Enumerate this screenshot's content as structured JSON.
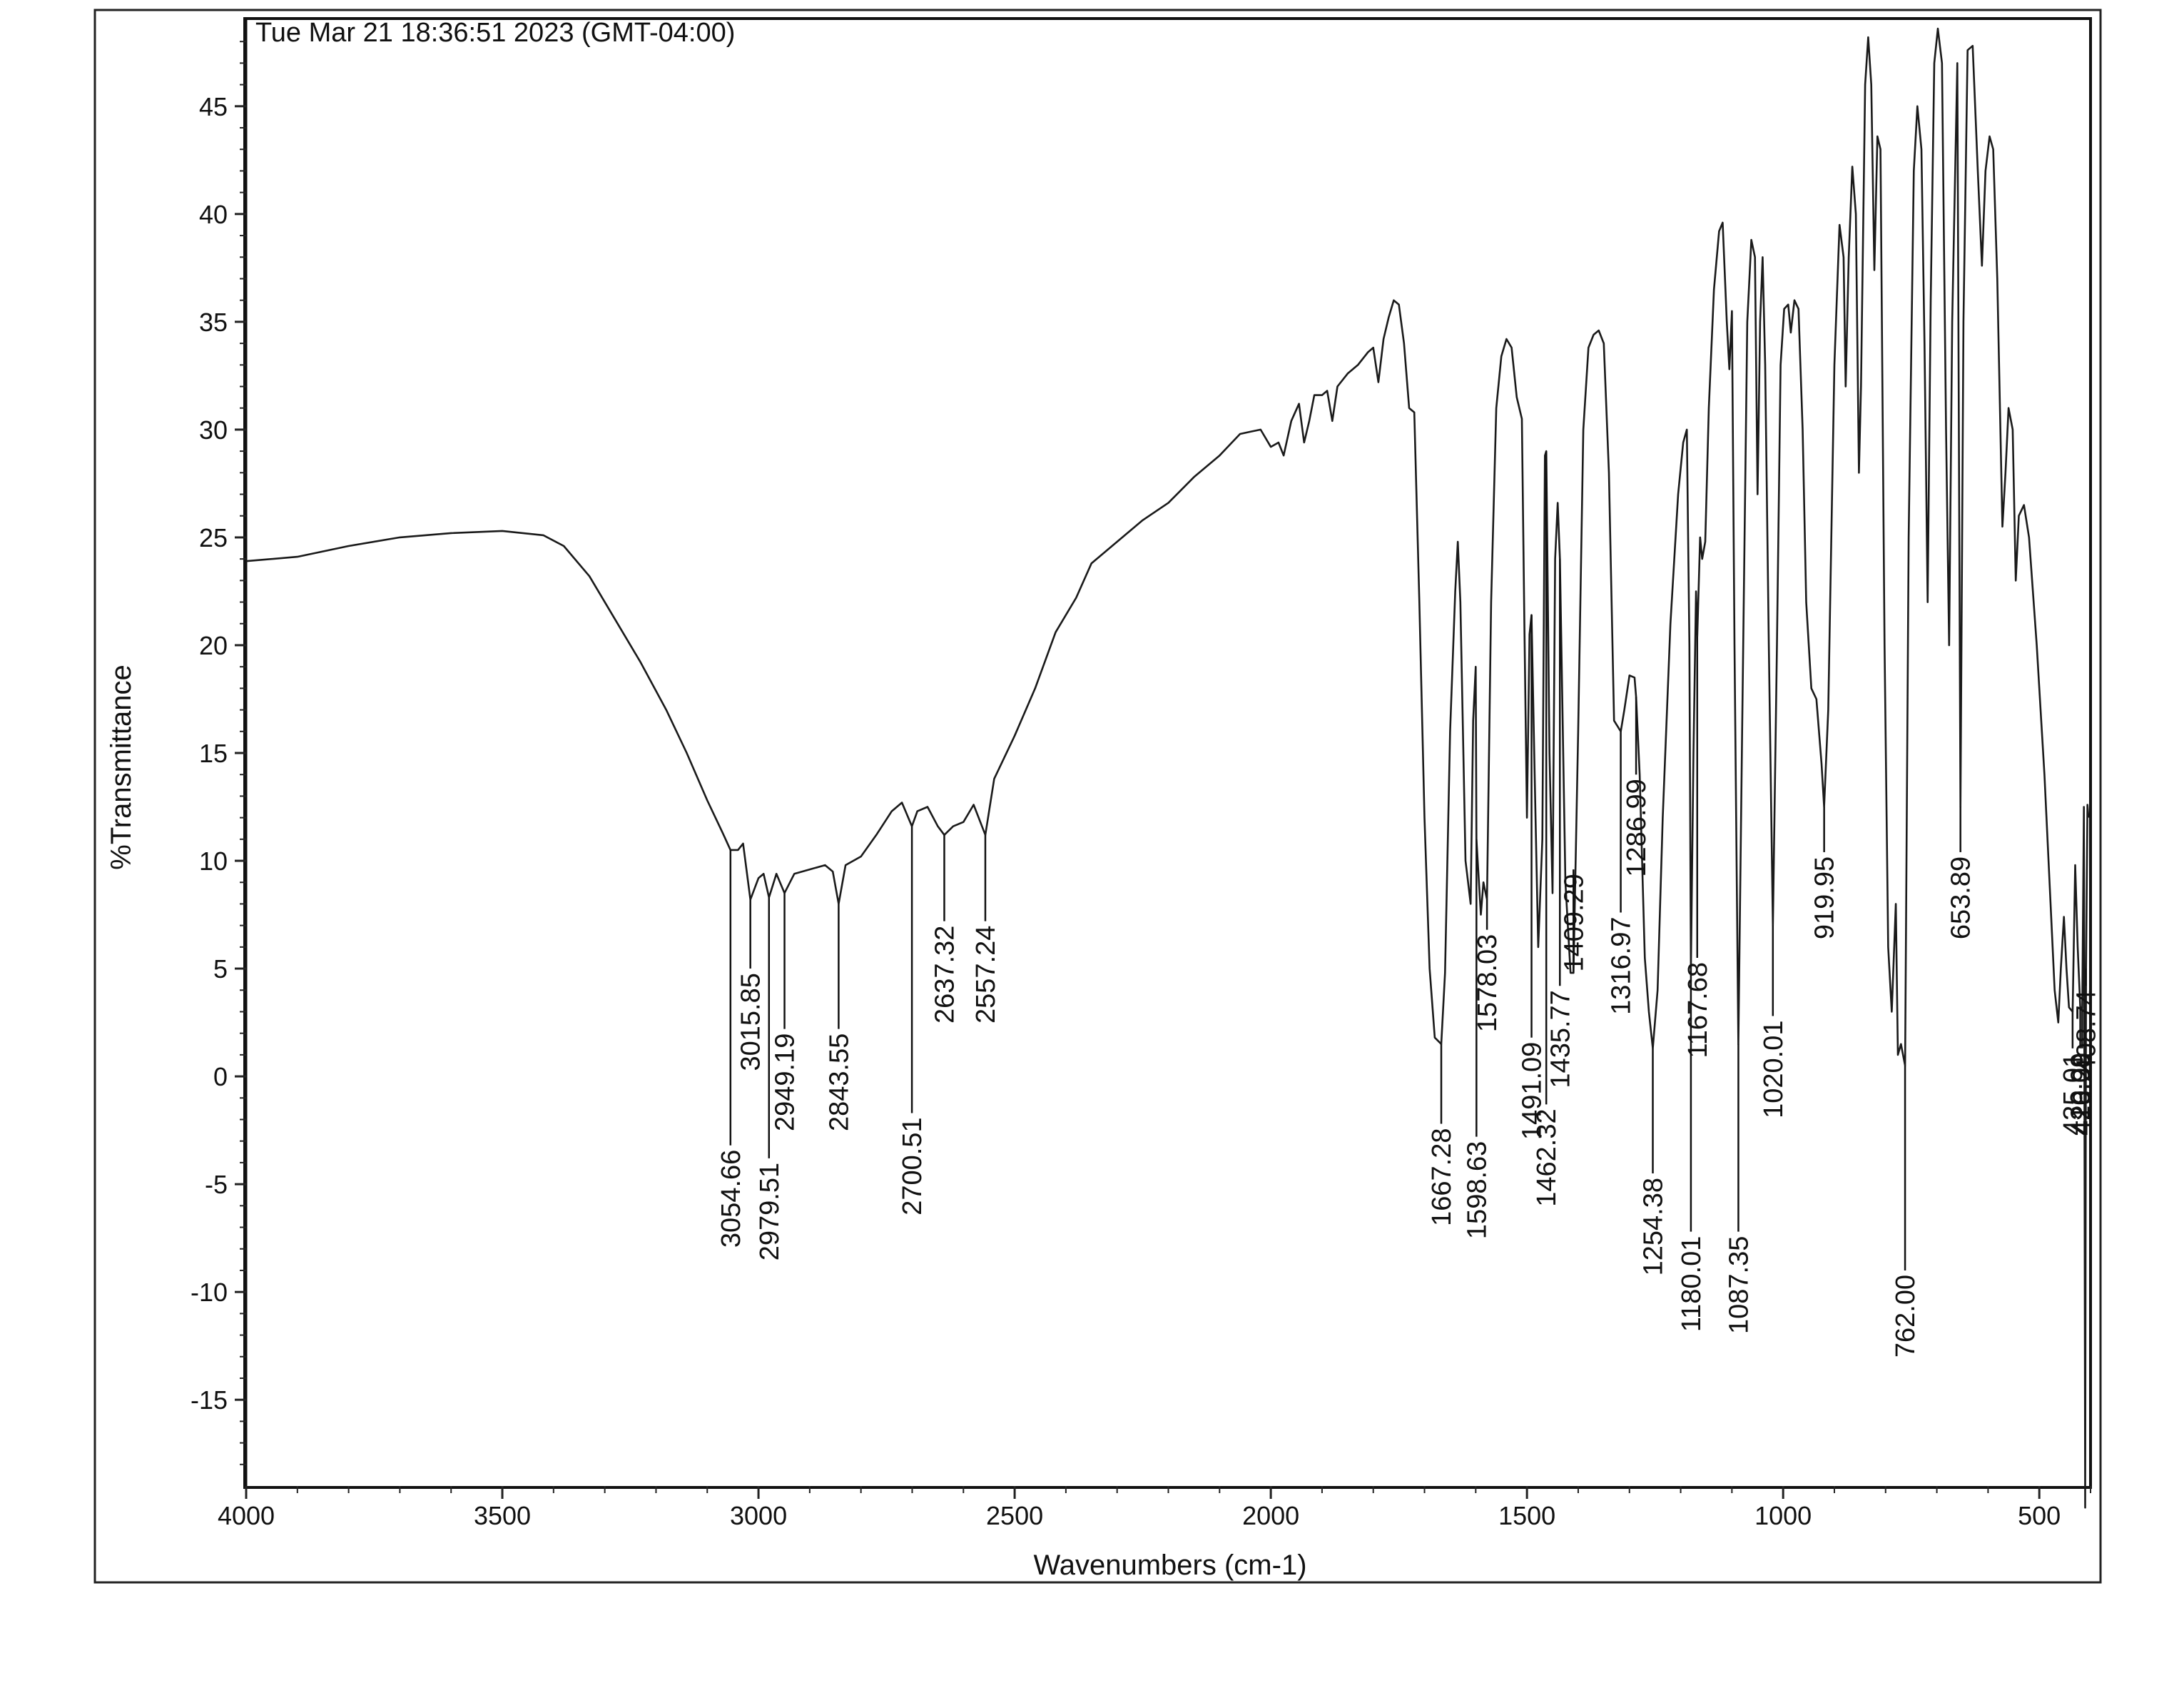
{
  "chart_data": {
    "type": "line",
    "timestamp": "Tue Mar 21 18:36:51 2023 (GMT-04:00)",
    "xlabel": "Wavenumbers (cm-1)",
    "ylabel": "%Transmittance",
    "xlim": [
      4000,
      400
    ],
    "ylim": [
      -19,
      49
    ],
    "grid": false,
    "x_ticks": [
      4000,
      3500,
      3000,
      2500,
      2000,
      1500,
      1000,
      500
    ],
    "y_ticks": [
      -15,
      -10,
      -5,
      0,
      5,
      10,
      15,
      20,
      25,
      30,
      35,
      40,
      45
    ],
    "series": [
      {
        "color": "#1a1a1a",
        "points": [
          [
            4000,
            23.9
          ],
          [
            3900,
            24.1
          ],
          [
            3800,
            24.6
          ],
          [
            3700,
            25.0
          ],
          [
            3600,
            25.2
          ],
          [
            3500,
            25.3
          ],
          [
            3420,
            25.1
          ],
          [
            3380,
            24.6
          ],
          [
            3330,
            23.2
          ],
          [
            3280,
            21.2
          ],
          [
            3230,
            19.2
          ],
          [
            3180,
            17.0
          ],
          [
            3140,
            15.0
          ],
          [
            3100,
            12.8
          ],
          [
            3070,
            11.3
          ],
          [
            3054.66,
            10.5
          ],
          [
            3040,
            10.5
          ],
          [
            3030,
            10.8
          ],
          [
            3015.85,
            8.2
          ],
          [
            3000,
            9.2
          ],
          [
            2990,
            9.4
          ],
          [
            2979.51,
            8.3
          ],
          [
            2965,
            9.4
          ],
          [
            2949.19,
            8.5
          ],
          [
            2930,
            9.4
          ],
          [
            2900,
            9.6
          ],
          [
            2870,
            9.8
          ],
          [
            2855,
            9.5
          ],
          [
            2843.55,
            8.0
          ],
          [
            2830,
            9.8
          ],
          [
            2800,
            10.2
          ],
          [
            2770,
            11.2
          ],
          [
            2740,
            12.3
          ],
          [
            2720,
            12.7
          ],
          [
            2700.51,
            11.6
          ],
          [
            2690,
            12.3
          ],
          [
            2670,
            12.5
          ],
          [
            2650,
            11.6
          ],
          [
            2637.32,
            11.2
          ],
          [
            2620,
            11.6
          ],
          [
            2600,
            11.8
          ],
          [
            2580,
            12.6
          ],
          [
            2557.24,
            11.2
          ],
          [
            2540,
            13.8
          ],
          [
            2500,
            15.8
          ],
          [
            2460,
            18.0
          ],
          [
            2420,
            20.6
          ],
          [
            2380,
            22.2
          ],
          [
            2350,
            23.8
          ],
          [
            2330,
            24.2
          ],
          [
            2300,
            24.8
          ],
          [
            2250,
            25.8
          ],
          [
            2200,
            26.6
          ],
          [
            2150,
            27.8
          ],
          [
            2100,
            28.8
          ],
          [
            2060,
            29.8
          ],
          [
            2040,
            29.9
          ],
          [
            2020,
            30.0
          ],
          [
            2000,
            29.2
          ],
          [
            1985,
            29.4
          ],
          [
            1975,
            28.8
          ],
          [
            1960,
            30.4
          ],
          [
            1945,
            31.2
          ],
          [
            1935,
            29.4
          ],
          [
            1925,
            30.4
          ],
          [
            1915,
            31.6
          ],
          [
            1900,
            31.6
          ],
          [
            1890,
            31.8
          ],
          [
            1880,
            30.4
          ],
          [
            1870,
            32.0
          ],
          [
            1850,
            32.6
          ],
          [
            1830,
            33.0
          ],
          [
            1810,
            33.6
          ],
          [
            1800,
            33.8
          ],
          [
            1790,
            32.2
          ],
          [
            1780,
            34.2
          ],
          [
            1770,
            35.2
          ],
          [
            1760,
            36.0
          ],
          [
            1750,
            35.8
          ],
          [
            1740,
            34.0
          ],
          [
            1730,
            31.0
          ],
          [
            1720,
            30.8
          ],
          [
            1710,
            22.0
          ],
          [
            1700,
            12.0
          ],
          [
            1690,
            5.0
          ],
          [
            1680,
            1.8
          ],
          [
            1667.28,
            1.5
          ],
          [
            1660,
            4.8
          ],
          [
            1650,
            16.0
          ],
          [
            1640,
            22.5
          ],
          [
            1635,
            24.8
          ],
          [
            1630,
            22.0
          ],
          [
            1620,
            10.0
          ],
          [
            1610,
            8.0
          ],
          [
            1605,
            16.5
          ],
          [
            1600,
            19.0
          ],
          [
            1598.63,
            11.0
          ],
          [
            1590,
            7.5
          ],
          [
            1585,
            9.0
          ],
          [
            1578.03,
            8.2
          ],
          [
            1570,
            22.0
          ],
          [
            1560,
            31.0
          ],
          [
            1550,
            33.4
          ],
          [
            1540,
            34.2
          ],
          [
            1530,
            33.8
          ],
          [
            1520,
            31.5
          ],
          [
            1510,
            30.5
          ],
          [
            1505,
            21.0
          ],
          [
            1500,
            12.0
          ],
          [
            1495,
            20.5
          ],
          [
            1491.09,
            21.4
          ],
          [
            1485,
            14.0
          ],
          [
            1478,
            6.0
          ],
          [
            1470,
            11.0
          ],
          [
            1465,
            28.8
          ],
          [
            1462.32,
            29.0
          ],
          [
            1456,
            15.0
          ],
          [
            1450,
            8.5
          ],
          [
            1445,
            24.0
          ],
          [
            1440,
            26.6
          ],
          [
            1435.77,
            24.0
          ],
          [
            1425,
            9.0
          ],
          [
            1415,
            4.8
          ],
          [
            1409.29,
            4.8
          ],
          [
            1400,
            16.0
          ],
          [
            1390,
            30.0
          ],
          [
            1380,
            33.8
          ],
          [
            1370,
            34.4
          ],
          [
            1360,
            34.6
          ],
          [
            1350,
            34.0
          ],
          [
            1340,
            28.0
          ],
          [
            1330,
            16.5
          ],
          [
            1316.97,
            16.0
          ],
          [
            1310,
            17.0
          ],
          [
            1300,
            18.6
          ],
          [
            1290,
            18.5
          ],
          [
            1286.99,
            17.6
          ],
          [
            1280,
            14.0
          ],
          [
            1270,
            5.5
          ],
          [
            1262,
            3.0
          ],
          [
            1254.38,
            1.3
          ],
          [
            1245,
            4.0
          ],
          [
            1235,
            12.0
          ],
          [
            1220,
            21.0
          ],
          [
            1205,
            27.0
          ],
          [
            1195,
            29.4
          ],
          [
            1188,
            30.0
          ],
          [
            1183,
            20.0
          ],
          [
            1180.01,
            5.0
          ],
          [
            1175,
            15.0
          ],
          [
            1170,
            22.5
          ],
          [
            1167.68,
            20.4
          ],
          [
            1162,
            25.0
          ],
          [
            1158,
            24.0
          ],
          [
            1152,
            24.8
          ],
          [
            1145,
            31.0
          ],
          [
            1135,
            36.5
          ],
          [
            1125,
            39.2
          ],
          [
            1118,
            39.6
          ],
          [
            1110,
            35.0
          ],
          [
            1105,
            32.8
          ],
          [
            1100,
            35.5
          ],
          [
            1095,
            20.0
          ],
          [
            1087.35,
            1.5
          ],
          [
            1080,
            16.0
          ],
          [
            1070,
            35.0
          ],
          [
            1062,
            38.8
          ],
          [
            1055,
            38.0
          ],
          [
            1050,
            27.0
          ],
          [
            1045,
            35.0
          ],
          [
            1040,
            38.0
          ],
          [
            1035,
            33.0
          ],
          [
            1028,
            20.0
          ],
          [
            1020.01,
            7.0
          ],
          [
            1012,
            20.0
          ],
          [
            1005,
            33.0
          ],
          [
            998,
            35.6
          ],
          [
            990,
            35.8
          ],
          [
            985,
            34.5
          ],
          [
            978,
            36.0
          ],
          [
            970,
            35.6
          ],
          [
            962,
            30.0
          ],
          [
            955,
            22.0
          ],
          [
            945,
            18.0
          ],
          [
            935,
            17.5
          ],
          [
            925,
            14.5
          ],
          [
            919.95,
            12.5
          ],
          [
            912,
            17.0
          ],
          [
            900,
            33.0
          ],
          [
            890,
            39.5
          ],
          [
            882,
            38.0
          ],
          [
            878,
            32.0
          ],
          [
            872,
            38.0
          ],
          [
            865,
            42.2
          ],
          [
            858,
            40.0
          ],
          [
            852,
            28.0
          ],
          [
            848,
            32.0
          ],
          [
            840,
            46.0
          ],
          [
            834,
            48.2
          ],
          [
            828,
            46.0
          ],
          [
            822,
            37.4
          ],
          [
            816,
            43.6
          ],
          [
            810,
            43.0
          ],
          [
            802,
            20.0
          ],
          [
            795,
            6.0
          ],
          [
            788,
            3.0
          ],
          [
            780,
            8.0
          ],
          [
            776,
            1.0
          ],
          [
            770,
            1.5
          ],
          [
            762,
            0.5
          ],
          [
            755,
            25.0
          ],
          [
            745,
            42.0
          ],
          [
            738,
            45.0
          ],
          [
            730,
            43.0
          ],
          [
            724,
            34.0
          ],
          [
            718,
            22.0
          ],
          [
            712,
            36.0
          ],
          [
            705,
            47.0
          ],
          [
            698,
            48.6
          ],
          [
            690,
            47.0
          ],
          [
            682,
            30.0
          ],
          [
            676,
            20.0
          ],
          [
            670,
            35.0
          ],
          [
            660,
            47.0
          ],
          [
            653.89,
            12.5
          ],
          [
            648,
            35.0
          ],
          [
            640,
            47.6
          ],
          [
            630,
            47.8
          ],
          [
            620,
            42.0
          ],
          [
            612,
            37.6
          ],
          [
            605,
            42.0
          ],
          [
            597,
            43.6
          ],
          [
            590,
            43.0
          ],
          [
            582,
            37.0
          ],
          [
            572,
            25.5
          ],
          [
            566,
            28.0
          ],
          [
            560,
            31.0
          ],
          [
            552,
            30.0
          ],
          [
            546,
            23.0
          ],
          [
            540,
            26.0
          ],
          [
            530,
            26.5
          ],
          [
            520,
            25.0
          ],
          [
            505,
            20.0
          ],
          [
            490,
            14.0
          ],
          [
            478,
            8.0
          ],
          [
            470,
            4.0
          ],
          [
            463,
            2.5
          ],
          [
            458,
            5.0
          ],
          [
            452,
            7.4
          ],
          [
            447,
            5.0
          ],
          [
            442,
            3.2
          ],
          [
            435.01,
            3.0
          ],
          [
            430,
            9.8
          ],
          [
            425,
            6.0
          ],
          [
            420.09,
            3.2
          ],
          [
            416.2,
            3.2
          ],
          [
            413,
            12.5
          ],
          [
            410.5,
            -20.0
          ],
          [
            408.74,
            5.0
          ],
          [
            406,
            12.6
          ],
          [
            404,
            12.0
          ]
        ]
      }
    ],
    "peak_labels": [
      {
        "text": "3054.66",
        "x": 3054.66,
        "y": 10.5,
        "ly": -3.2
      },
      {
        "text": "3015.85",
        "x": 3015.85,
        "y": 8.2,
        "ly": 5.0
      },
      {
        "text": "2979.51",
        "x": 2979.51,
        "y": 8.3,
        "ly": -3.8
      },
      {
        "text": "2949.19",
        "x": 2949.19,
        "y": 8.5,
        "ly": 2.2
      },
      {
        "text": "2843.55",
        "x": 2843.55,
        "y": 8.0,
        "ly": 2.2
      },
      {
        "text": "2700.51",
        "x": 2700.51,
        "y": 11.6,
        "ly": -1.7
      },
      {
        "text": "2637.32",
        "x": 2637.32,
        "y": 11.2,
        "ly": 7.2
      },
      {
        "text": "2557.24",
        "x": 2557.24,
        "y": 11.2,
        "ly": 7.2
      },
      {
        "text": "1667.28",
        "x": 1667.28,
        "y": 1.5,
        "ly": -2.2
      },
      {
        "text": "1578.03",
        "x": 1578.03,
        "y": 8.2,
        "ly": 6.8
      },
      {
        "text": "1462.32",
        "x": 1462.32,
        "y": 29.0,
        "ly": -1.3
      },
      {
        "text": "1598.63",
        "x": 1598.63,
        "y": 11.0,
        "ly": -2.8
      },
      {
        "text": "1435.77",
        "x": 1435.77,
        "y": 24.0,
        "ly": 4.2
      },
      {
        "text": "1491.09",
        "x": 1491.09,
        "y": 21.4,
        "ly": 1.8
      },
      {
        "text": "1409.29",
        "x": 1409.29,
        "y": 4.8,
        "ly": 9.6
      },
      {
        "text": "1286.99",
        "x": 1286.99,
        "y": 17.6,
        "ly": 14.0
      },
      {
        "text": "1316.97",
        "x": 1316.97,
        "y": 16.0,
        "ly": 7.6
      },
      {
        "text": "1254.38",
        "x": 1254.38,
        "y": 1.3,
        "ly": -4.5
      },
      {
        "text": "1180.01",
        "x": 1180.01,
        "y": 5.0,
        "ly": -7.2
      },
      {
        "text": "1167.68",
        "x": 1167.68,
        "y": 20.4,
        "ly": 5.5
      },
      {
        "text": "1087.35",
        "x": 1087.35,
        "y": 1.5,
        "ly": -7.2
      },
      {
        "text": "1020.01",
        "x": 1020.01,
        "y": 7.0,
        "ly": 2.8
      },
      {
        "text": "919.95",
        "x": 919.95,
        "y": 12.5,
        "ly": 10.4
      },
      {
        "text": "762.00",
        "x": 762.0,
        "y": 0.5,
        "ly": -9.0
      },
      {
        "text": "653.89",
        "x": 653.89,
        "y": 12.5,
        "ly": 10.4
      },
      {
        "text": "435.01",
        "x": 435.01,
        "y": 3.0,
        "ly": 1.3
      },
      {
        "text": "420.09",
        "x": 420.09,
        "y": 3.2,
        "ly": 1.3
      },
      {
        "text": "416.20",
        "x": 416.2,
        "y": 3.2,
        "ly": 1.3
      },
      {
        "text": "408.74",
        "x": 408.74,
        "y": 5.0,
        "ly": 4.2
      }
    ]
  }
}
